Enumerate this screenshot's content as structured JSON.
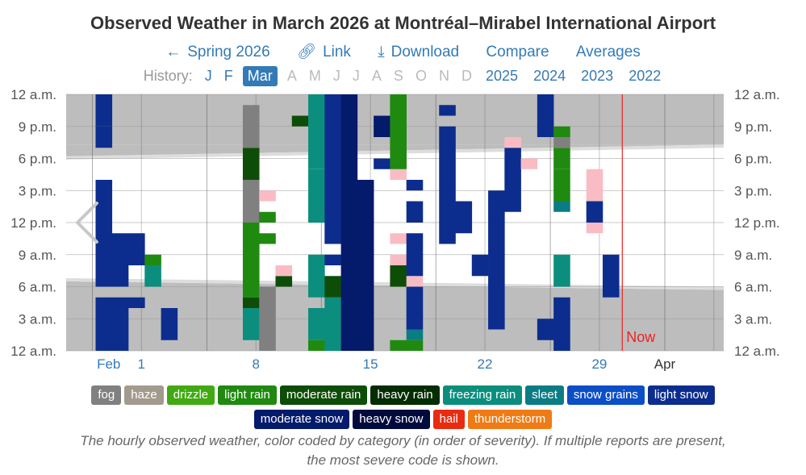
{
  "header": {
    "title": "Observed Weather in March 2026 at Montréal–Mirabel International Airport"
  },
  "nav": {
    "spring": "Spring 2026",
    "link": "Link",
    "download": "Download",
    "compare": "Compare",
    "averages": "Averages"
  },
  "history": {
    "label": "History:",
    "months": [
      "J",
      "F",
      "Mar",
      "A",
      "M",
      "J",
      "J",
      "A",
      "S",
      "O",
      "N",
      "D"
    ],
    "years": [
      "2025",
      "2024",
      "2023",
      "2022"
    ]
  },
  "chart_data": {
    "type": "heatmap",
    "title": "Observed Weather in March 2026 at Montréal–Mirabel International Airport",
    "y_labels": [
      "12 a.m.",
      "3 a.m.",
      "6 a.m.",
      "9 a.m.",
      "12 p.m.",
      "3 p.m.",
      "6 p.m.",
      "9 p.m.",
      "12 a.m."
    ],
    "x_labels": [
      {
        "label": "Feb",
        "day": 28.8,
        "color": "#337ab7"
      },
      {
        "label": "1",
        "day": 30.8,
        "color": "#337ab7"
      },
      {
        "label": "8",
        "day": 37.8,
        "color": "#337ab7"
      },
      {
        "label": "15",
        "day": 44.8,
        "color": "#337ab7"
      },
      {
        "label": "22",
        "day": 51.8,
        "color": "#337ab7"
      },
      {
        "label": "29",
        "day": 58.8,
        "color": "#337ab7"
      },
      {
        "label": "Apr",
        "day": 62.8,
        "color": "#333333"
      }
    ],
    "x_range_days": [
      26.2,
      66.4
    ],
    "now_day": 60.2,
    "now_label": "Now",
    "sunrise_hours": [
      6.5,
      5.7
    ],
    "sunset_hours": [
      18.2,
      19.3
    ],
    "categories": [
      {
        "key": "fog",
        "name": "fog",
        "color": "#808080"
      },
      {
        "key": "haze",
        "name": "haze",
        "color": "#a39a8e"
      },
      {
        "key": "drizzle",
        "name": "drizzle",
        "color": "#41a911"
      },
      {
        "key": "light_rain",
        "name": "light rain",
        "color": "#1f8a0f"
      },
      {
        "key": "moderate_rain",
        "name": "moderate rain",
        "color": "#0e4d08"
      },
      {
        "key": "heavy_rain",
        "name": "heavy rain",
        "color": "#052d02"
      },
      {
        "key": "freezing_rain",
        "name": "freezing rain",
        "color": "#0b8e7e"
      },
      {
        "key": "sleet",
        "name": "sleet",
        "color": "#0b7c84"
      },
      {
        "key": "snow_grains",
        "name": "snow grains",
        "color": "#0b4ec7"
      },
      {
        "key": "light_snow",
        "name": "light snow",
        "color": "#0c2d8e"
      },
      {
        "key": "moderate_snow",
        "name": "moderate snow",
        "color": "#041a6b"
      },
      {
        "key": "heavy_snow",
        "name": "heavy snow",
        "color": "#000b3d"
      },
      {
        "key": "hail",
        "name": "hail",
        "color": "#ea2b10"
      },
      {
        "key": "thunderstorm",
        "name": "thunderstorm",
        "color": "#f07b14"
      },
      {
        "key": "pink",
        "name": "",
        "color": "#f9bcc4"
      }
    ],
    "observations": [
      {
        "day": 28,
        "from": 0,
        "to": 5,
        "cat": "light_snow"
      },
      {
        "day": 28,
        "from": 6,
        "to": 16,
        "cat": "light_snow"
      },
      {
        "day": 28,
        "from": 19,
        "to": 21,
        "cat": "light_snow"
      },
      {
        "day": 28,
        "from": 21,
        "to": 24,
        "cat": "light_snow"
      },
      {
        "day": 29,
        "from": 0,
        "to": 5,
        "cat": "light_snow"
      },
      {
        "day": 29,
        "from": 6,
        "to": 11,
        "cat": "light_snow"
      },
      {
        "day": 30,
        "from": 4,
        "to": 5,
        "cat": "light_snow"
      },
      {
        "day": 30,
        "from": 8,
        "to": 11,
        "cat": "light_snow"
      },
      {
        "day": 31,
        "from": 6,
        "to": 8,
        "cat": "freezing_rain"
      },
      {
        "day": 31,
        "from": 8,
        "to": 9,
        "cat": "light_rain"
      },
      {
        "day": 32,
        "from": 1,
        "to": 4,
        "cat": "light_snow"
      },
      {
        "day": 37,
        "from": 1,
        "to": 4,
        "cat": "freezing_rain"
      },
      {
        "day": 37,
        "from": 4,
        "to": 5,
        "cat": "moderate_rain"
      },
      {
        "day": 37,
        "from": 5,
        "to": 12,
        "cat": "light_rain"
      },
      {
        "day": 37,
        "from": 12,
        "to": 16,
        "cat": "fog"
      },
      {
        "day": 37,
        "from": 16,
        "to": 19,
        "cat": "moderate_rain"
      },
      {
        "day": 37,
        "from": 19,
        "to": 23,
        "cat": "fog"
      },
      {
        "day": 38,
        "from": 0,
        "to": 2,
        "cat": "fog"
      },
      {
        "day": 38,
        "from": 2,
        "to": 6,
        "cat": "fog"
      },
      {
        "day": 38,
        "from": 10,
        "to": 11,
        "cat": "light_rain"
      },
      {
        "day": 38,
        "from": 12,
        "to": 13,
        "cat": "light_rain"
      },
      {
        "day": 38,
        "from": 14,
        "to": 15,
        "cat": "pink"
      },
      {
        "day": 39,
        "from": 6,
        "to": 7,
        "cat": "moderate_rain"
      },
      {
        "day": 39,
        "from": 7,
        "to": 8,
        "cat": "pink"
      },
      {
        "day": 40,
        "from": 21,
        "to": 22,
        "cat": "moderate_rain"
      },
      {
        "day": 41,
        "from": 0,
        "to": 1,
        "cat": "light_rain"
      },
      {
        "day": 41,
        "from": 1,
        "to": 4,
        "cat": "freezing_rain"
      },
      {
        "day": 41,
        "from": 5,
        "to": 9,
        "cat": "freezing_rain"
      },
      {
        "day": 41,
        "from": 12,
        "to": 17,
        "cat": "freezing_rain"
      },
      {
        "day": 41,
        "from": 17,
        "to": 24,
        "cat": "freezing_rain"
      },
      {
        "day": 42,
        "from": 0,
        "to": 5,
        "cat": "freezing_rain"
      },
      {
        "day": 42,
        "from": 5,
        "to": 7,
        "cat": "moderate_rain"
      },
      {
        "day": 42,
        "from": 8,
        "to": 9,
        "cat": "light_snow"
      },
      {
        "day": 42,
        "from": 10,
        "to": 24,
        "cat": "light_snow"
      },
      {
        "day": 43,
        "from": 0,
        "to": 6,
        "cat": "moderate_snow"
      },
      {
        "day": 43,
        "from": 6,
        "to": 24,
        "cat": "moderate_snow"
      },
      {
        "day": 44,
        "from": 0,
        "to": 16,
        "cat": "moderate_snow"
      },
      {
        "day": 45,
        "from": 17,
        "to": 18,
        "cat": "light_snow"
      },
      {
        "day": 45,
        "from": 20,
        "to": 22,
        "cat": "moderate_snow"
      },
      {
        "day": 46,
        "from": 0,
        "to": 1,
        "cat": "light_rain"
      },
      {
        "day": 46,
        "from": 6,
        "to": 8,
        "cat": "moderate_rain"
      },
      {
        "day": 46,
        "from": 8,
        "to": 9,
        "cat": "pink"
      },
      {
        "day": 46,
        "from": 10,
        "to": 11,
        "cat": "pink"
      },
      {
        "day": 46,
        "from": 16,
        "to": 17,
        "cat": "pink"
      },
      {
        "day": 46,
        "from": 17,
        "to": 24,
        "cat": "light_rain"
      },
      {
        "day": 47,
        "from": 0,
        "to": 1,
        "cat": "light_rain"
      },
      {
        "day": 47,
        "from": 1,
        "to": 2,
        "cat": "sleet"
      },
      {
        "day": 47,
        "from": 2,
        "to": 6,
        "cat": "light_snow"
      },
      {
        "day": 47,
        "from": 6,
        "to": 7,
        "cat": "pink"
      },
      {
        "day": 47,
        "from": 7,
        "to": 11,
        "cat": "light_snow"
      },
      {
        "day": 47,
        "from": 12,
        "to": 14,
        "cat": "light_snow"
      },
      {
        "day": 47,
        "from": 15,
        "to": 16,
        "cat": "light_snow"
      },
      {
        "day": 49,
        "from": 10,
        "to": 21,
        "cat": "light_snow"
      },
      {
        "day": 49,
        "from": 22,
        "to": 23,
        "cat": "light_snow"
      },
      {
        "day": 50,
        "from": 11,
        "to": 14,
        "cat": "light_snow"
      },
      {
        "day": 51,
        "from": 7,
        "to": 9,
        "cat": "light_snow"
      },
      {
        "day": 52,
        "from": 2,
        "to": 14,
        "cat": "light_snow"
      },
      {
        "day": 52,
        "from": 14,
        "to": 15,
        "cat": "light_snow"
      },
      {
        "day": 53,
        "from": 13,
        "to": 16,
        "cat": "light_snow"
      },
      {
        "day": 53,
        "from": 16,
        "to": 19,
        "cat": "light_snow"
      },
      {
        "day": 53,
        "from": 19,
        "to": 20,
        "cat": "pink"
      },
      {
        "day": 54,
        "from": 17,
        "to": 18,
        "cat": "pink"
      },
      {
        "day": 55,
        "from": 1,
        "to": 3,
        "cat": "light_snow"
      },
      {
        "day": 55,
        "from": 20,
        "to": 24,
        "cat": "light_snow"
      },
      {
        "day": 56,
        "from": 0,
        "to": 5,
        "cat": "light_snow"
      },
      {
        "day": 56,
        "from": 6,
        "to": 9,
        "cat": "freezing_rain"
      },
      {
        "day": 56,
        "from": 13,
        "to": 14,
        "cat": "sleet"
      },
      {
        "day": 56,
        "from": 14,
        "to": 17,
        "cat": "light_rain"
      },
      {
        "day": 56,
        "from": 17,
        "to": 19,
        "cat": "light_rain"
      },
      {
        "day": 56,
        "from": 19,
        "to": 20,
        "cat": "fog"
      },
      {
        "day": 56,
        "from": 20,
        "to": 21,
        "cat": "light_rain"
      },
      {
        "day": 58,
        "from": 11,
        "to": 12,
        "cat": "pink"
      },
      {
        "day": 58,
        "from": 12,
        "to": 14,
        "cat": "light_snow"
      },
      {
        "day": 58,
        "from": 14,
        "to": 17,
        "cat": "pink"
      },
      {
        "day": 59,
        "from": 5,
        "to": 9,
        "cat": "light_snow"
      }
    ]
  },
  "legend": {
    "items": [
      {
        "key": "fog",
        "name": "fog",
        "color": "#808080"
      },
      {
        "key": "haze",
        "name": "haze",
        "color": "#a39a8e"
      },
      {
        "key": "drizzle",
        "name": "drizzle",
        "color": "#41a911"
      },
      {
        "key": "light_rain",
        "name": "light rain",
        "color": "#1f8a0f"
      },
      {
        "key": "moderate_rain",
        "name": "moderate rain",
        "color": "#0e4d08"
      },
      {
        "key": "heavy_rain",
        "name": "heavy rain",
        "color": "#052d02"
      },
      {
        "key": "freezing_rain",
        "name": "freezing rain",
        "color": "#0b8e7e"
      },
      {
        "key": "sleet",
        "name": "sleet",
        "color": "#0b7c84"
      },
      {
        "key": "snow_grains",
        "name": "snow grains",
        "color": "#0b4ec7"
      },
      {
        "key": "light_snow",
        "name": "light snow",
        "color": "#0c2d8e"
      },
      {
        "key": "moderate_snow",
        "name": "moderate snow",
        "color": "#041a6b"
      },
      {
        "key": "heavy_snow",
        "name": "heavy snow",
        "color": "#000b3d"
      },
      {
        "key": "hail",
        "name": "hail",
        "color": "#ea2b10"
      },
      {
        "key": "thunderstorm",
        "name": "thunderstorm",
        "color": "#f07b14"
      }
    ]
  },
  "caption": {
    "line1": "The hourly observed weather, color coded by category (in order of severity). If multiple reports are present,",
    "line2": "the most severe code is shown."
  }
}
